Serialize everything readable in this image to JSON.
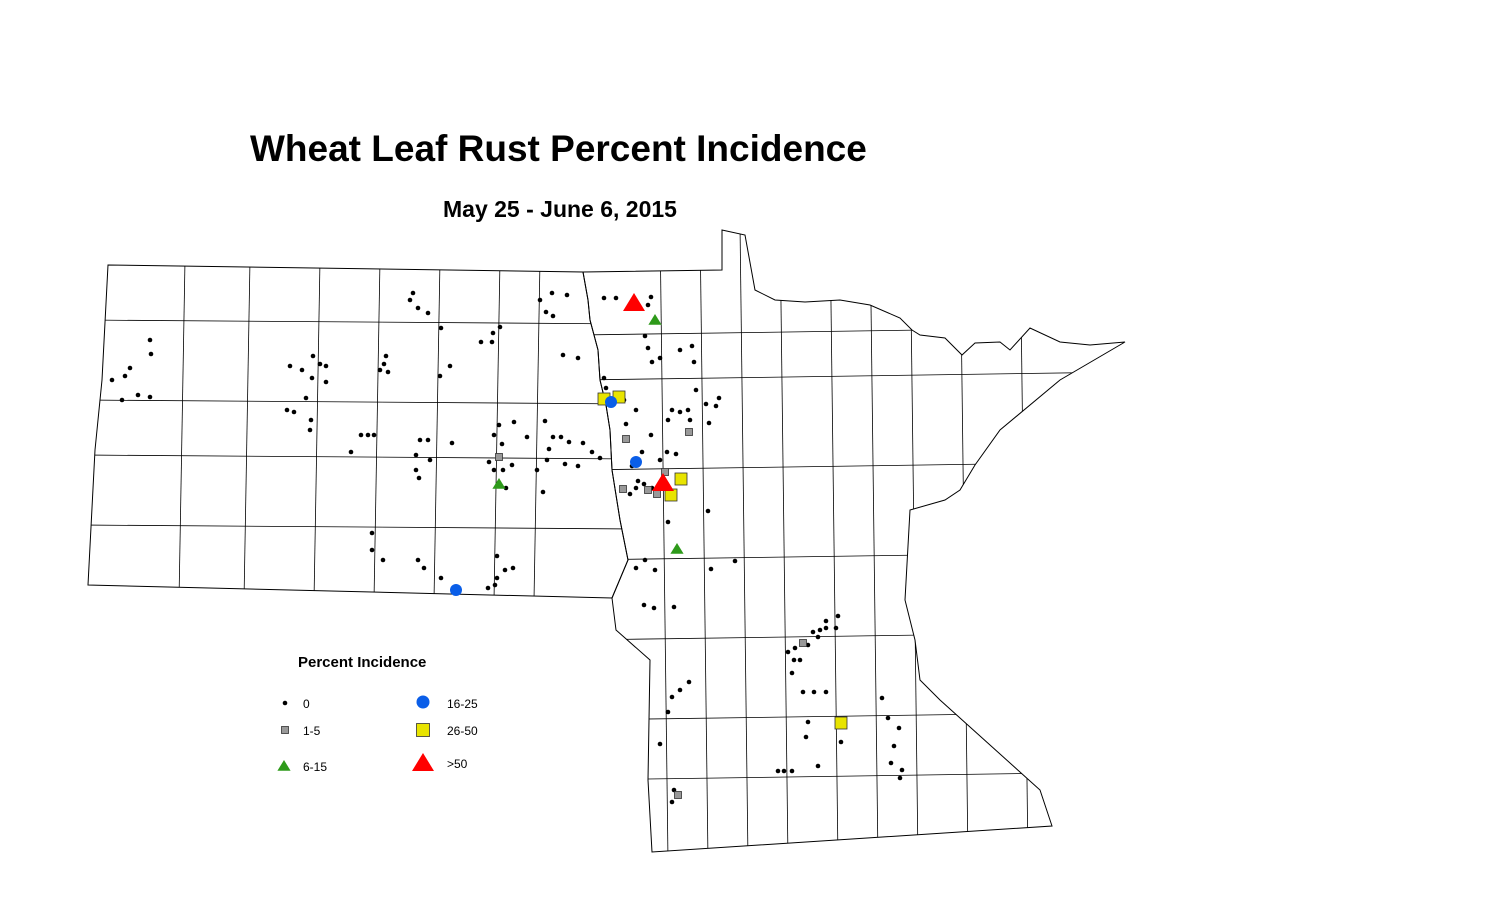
{
  "title": "Wheat Leaf Rust Percent Incidence",
  "subtitle": "May 25 - June 6, 2015",
  "legend": {
    "title": "Percent Incidence",
    "items": [
      {
        "label": "0",
        "symbol": "dot",
        "color": "#000000"
      },
      {
        "label": "1-5",
        "symbol": "square",
        "color": "#999999"
      },
      {
        "label": "6-15",
        "symbol": "triangle",
        "color": "#2e9a1a"
      },
      {
        "label": "16-25",
        "symbol": "circle",
        "color": "#0a5ee8"
      },
      {
        "label": "26-50",
        "symbol": "square",
        "color": "#e8e400"
      },
      {
        "label": ">50",
        "symbol": "triangle",
        "color": "#ff0000"
      }
    ]
  }
}
